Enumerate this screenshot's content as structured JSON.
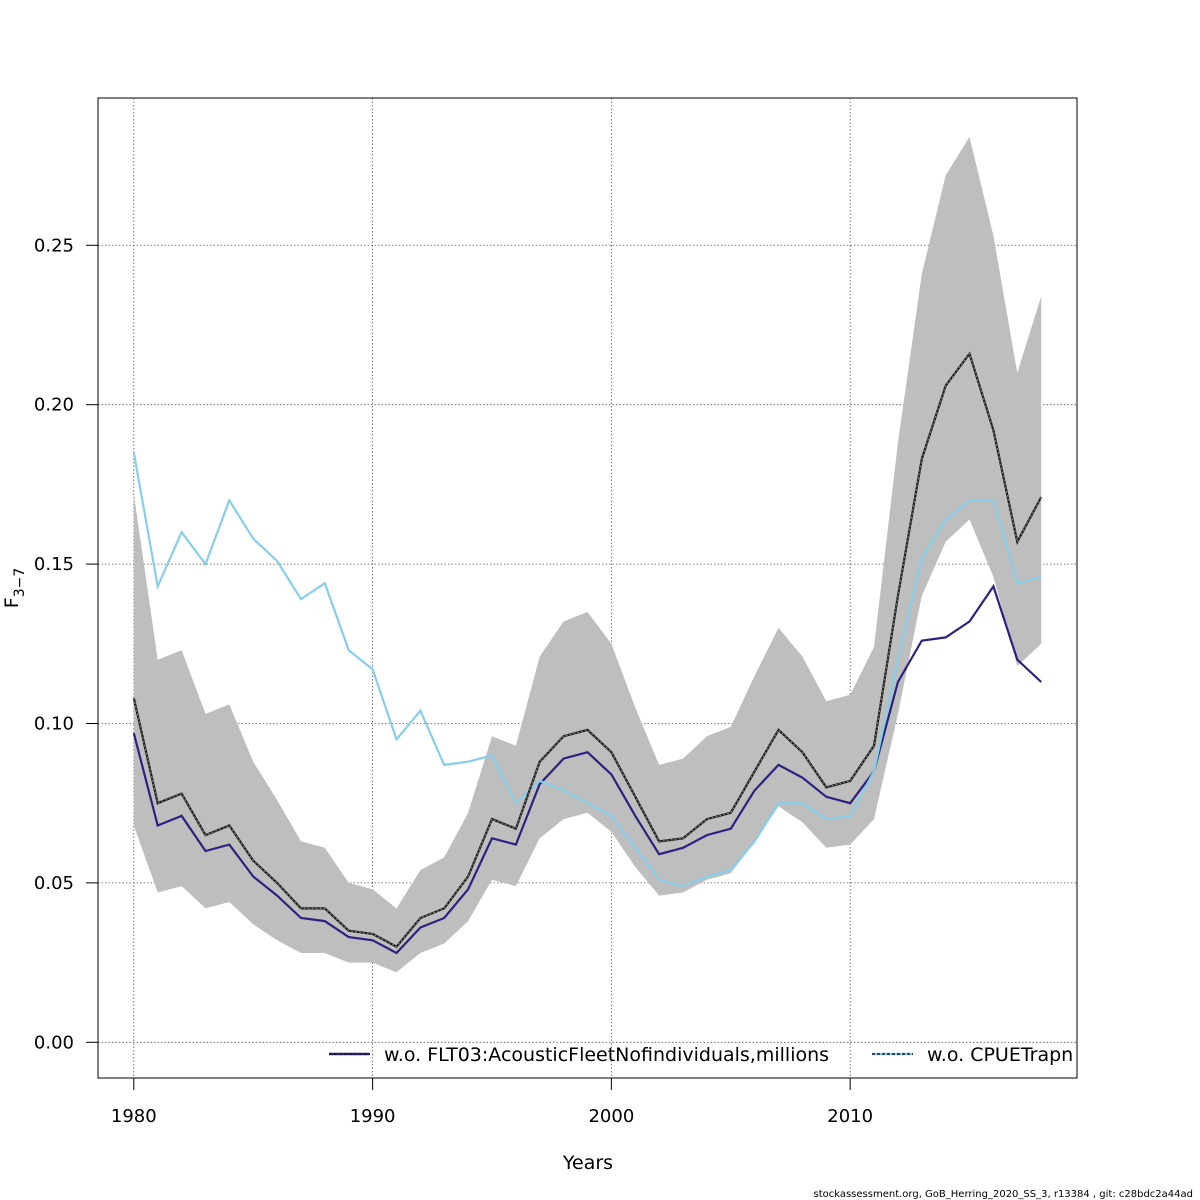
{
  "chart_data": {
    "type": "line",
    "xlabel": "Years",
    "ylabel": "F",
    "ylabel_sub": "3−7",
    "xlim": [
      1978.5,
      2019.5
    ],
    "ylim": [
      -0.0112,
      0.2962
    ],
    "xticks": [
      1980,
      1990,
      2000,
      2010
    ],
    "xtick_labels": [
      "1980",
      "1990",
      "2000",
      "2010"
    ],
    "yticks": [
      0.0,
      0.05,
      0.1,
      0.15,
      0.2,
      0.25
    ],
    "ytick_labels": [
      "0.00",
      "0.05",
      "0.10",
      "0.15",
      "0.20",
      "0.25"
    ],
    "grid": true,
    "legend_position": "bottom",
    "x": [
      1980,
      1981,
      1982,
      1983,
      1984,
      1985,
      1986,
      1987,
      1988,
      1989,
      1990,
      1991,
      1992,
      1993,
      1994,
      1995,
      1996,
      1997,
      1998,
      1999,
      2000,
      2001,
      2002,
      2003,
      2004,
      2005,
      2006,
      2007,
      2008,
      2009,
      2010,
      2011,
      2012,
      2013,
      2014,
      2015,
      2016,
      2017,
      2018
    ],
    "band": {
      "color": "#bebebe",
      "upper": [
        0.172,
        0.12,
        0.123,
        0.103,
        0.106,
        0.088,
        0.076,
        0.063,
        0.061,
        0.05,
        0.048,
        0.042,
        0.054,
        0.058,
        0.072,
        0.096,
        0.093,
        0.121,
        0.132,
        0.135,
        0.125,
        0.105,
        0.087,
        0.089,
        0.096,
        0.099,
        0.115,
        0.13,
        0.121,
        0.107,
        0.109,
        0.124,
        0.188,
        0.241,
        0.272,
        0.284,
        0.253,
        0.21,
        0.234
      ],
      "lower": [
        0.068,
        0.047,
        0.049,
        0.042,
        0.044,
        0.037,
        0.032,
        0.028,
        0.028,
        0.025,
        0.025,
        0.022,
        0.028,
        0.031,
        0.038,
        0.051,
        0.049,
        0.064,
        0.07,
        0.072,
        0.066,
        0.055,
        0.046,
        0.047,
        0.051,
        0.053,
        0.063,
        0.074,
        0.069,
        0.061,
        0.062,
        0.07,
        0.103,
        0.14,
        0.157,
        0.164,
        0.146,
        0.118,
        0.125
      ]
    },
    "series": [
      {
        "color": "#1a1a1a",
        "dashed": true,
        "values": [
          0.108,
          0.075,
          0.078,
          0.065,
          0.068,
          0.057,
          0.05,
          0.042,
          0.042,
          0.035,
          0.034,
          0.03,
          0.039,
          0.042,
          0.052,
          0.07,
          0.067,
          0.088,
          0.096,
          0.098,
          0.091,
          0.077,
          0.063,
          0.064,
          0.07,
          0.072,
          0.085,
          0.098,
          0.091,
          0.08,
          0.082,
          0.093,
          0.14,
          0.183,
          0.206,
          0.216,
          0.192,
          0.157,
          0.171
        ]
      },
      {
        "name": "w.o. FLT03:AcousticFleetNofindividuals,millions",
        "color": "#2b2280",
        "values": [
          0.097,
          0.068,
          0.071,
          0.06,
          0.062,
          0.052,
          0.046,
          0.039,
          0.038,
          0.033,
          0.032,
          0.028,
          0.036,
          0.039,
          0.048,
          0.064,
          0.062,
          0.081,
          0.089,
          0.091,
          0.084,
          0.071,
          0.059,
          0.061,
          0.065,
          0.067,
          0.079,
          0.087,
          0.083,
          0.077,
          0.075,
          0.085,
          0.113,
          0.126,
          0.127,
          0.132,
          0.143,
          0.12,
          0.113
        ]
      },
      {
        "name": "w.o. CPUETrapn",
        "color": "#87ceeb",
        "values": [
          0.185,
          0.143,
          0.16,
          0.15,
          0.17,
          0.158,
          0.151,
          0.139,
          0.144,
          0.123,
          0.117,
          0.095,
          0.104,
          0.087,
          0.088,
          0.09,
          0.075,
          0.082,
          0.079,
          0.075,
          0.071,
          0.061,
          0.051,
          0.049,
          0.052,
          0.054,
          0.063,
          0.075,
          0.075,
          0.07,
          0.071,
          0.085,
          0.12,
          0.152,
          0.164,
          0.17,
          0.17,
          0.144,
          0.146
        ]
      }
    ]
  },
  "footer": "stockassessment.org, GoB_Herring_2020_SS_3, r13384 , git: c28bdc2a44ad"
}
